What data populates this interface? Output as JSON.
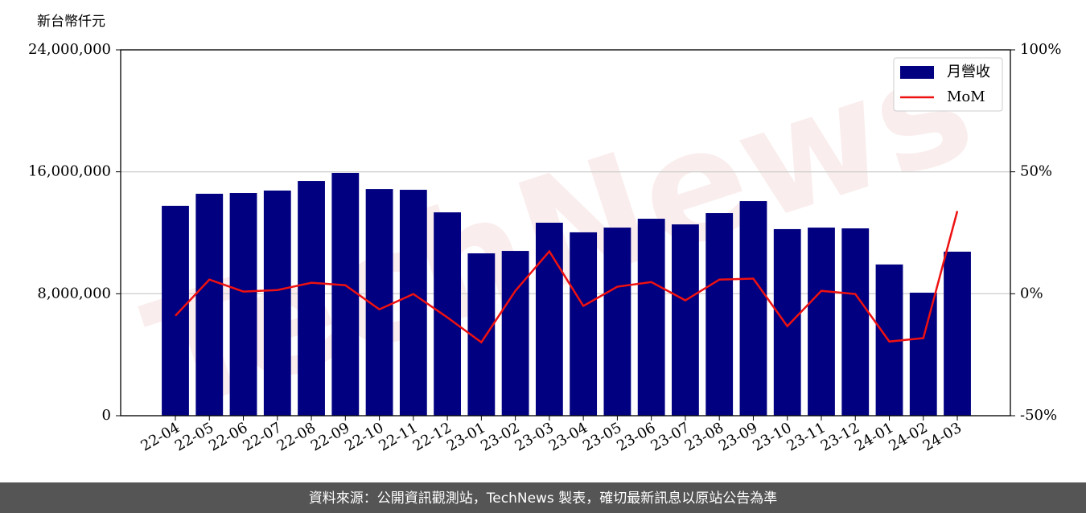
{
  "chart_data": {
    "type": "bar",
    "y_label": "新台幣仟元",
    "watermark": "TechNews",
    "categories": [
      "22-04",
      "22-05",
      "22-06",
      "22-07",
      "22-08",
      "22-09",
      "22-10",
      "22-11",
      "22-12",
      "23-01",
      "23-02",
      "23-03",
      "23-04",
      "23-05",
      "23-06",
      "23-07",
      "23-08",
      "23-09",
      "23-10",
      "23-11",
      "23-12",
      "24-01",
      "24-02",
      "24-03"
    ],
    "series": [
      {
        "name": "月營收",
        "type": "bar",
        "color": "#000080",
        "values": [
          13770000,
          14560000,
          14610000,
          14770000,
          15400000,
          15930000,
          14870000,
          14820000,
          13340000,
          10650000,
          10810000,
          12660000,
          12030000,
          12340000,
          12920000,
          12550000,
          13290000,
          14080000,
          12240000,
          12340000,
          12290000,
          9920000,
          8070000,
          10760000
        ]
      },
      {
        "name": "MoM",
        "type": "line",
        "color": "#ee1111",
        "axis": "y2",
        "values": [
          -9.0,
          5.8,
          0.9,
          1.5,
          4.5,
          3.5,
          -6.4,
          -0.1,
          -9.7,
          -19.9,
          1.2,
          17.4,
          -5.0,
          2.9,
          4.8,
          -2.7,
          5.8,
          6.2,
          -13.3,
          1.2,
          -0.1,
          -19.6,
          -18.2,
          33.9
        ]
      }
    ],
    "ylim": [
      0,
      24000000
    ],
    "yticks": [
      {
        "value": 0,
        "label": "0"
      },
      {
        "value": 8000000,
        "label": "8,000,000"
      },
      {
        "value": 16000000,
        "label": "16,000,000"
      },
      {
        "value": 24000000,
        "label": "24,000,000"
      }
    ],
    "y2lim": [
      -50,
      100
    ],
    "y2ticks": [
      {
        "value": -50,
        "label": "-50%"
      },
      {
        "value": 0,
        "label": "0%"
      },
      {
        "value": 50,
        "label": "50%"
      },
      {
        "value": 100,
        "label": "100%"
      }
    ],
    "grid": true,
    "legend": "upper right"
  },
  "footer": "資料來源：公開資訊觀測站，TechNews 製表，確切最新訊息以原站公告為準"
}
